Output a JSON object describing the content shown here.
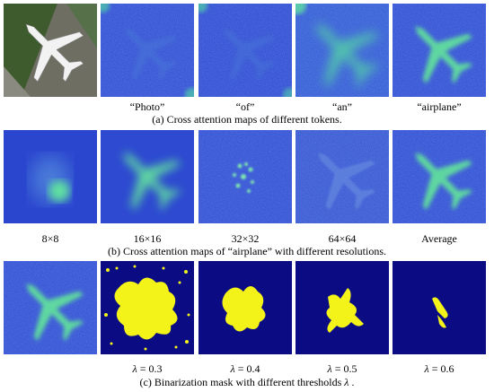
{
  "colors": {
    "map_bg": "#2d4ad0",
    "map_hot": "#5fd7a0",
    "mask_bg": "#0b0b83",
    "mask_fg": "#f3f31a"
  },
  "row_a": {
    "labels": [
      "“Photo”",
      "“of”",
      "“an”",
      "“airplane”"
    ],
    "caption": "(a) Cross attention maps of different tokens."
  },
  "row_b": {
    "labels": [
      "8×8",
      "16×16",
      "32×32",
      "64×64",
      "Average"
    ],
    "caption": "(b) Cross attention maps of “airplane” with different resolutions."
  },
  "row_c": {
    "lambda_symbol": "λ",
    "thresholds": [
      "= 0.3",
      "= 0.4",
      "= 0.5",
      "= 0.6"
    ],
    "caption_text": "(c) Binarization mask with different thresholds",
    "caption_end": "."
  }
}
